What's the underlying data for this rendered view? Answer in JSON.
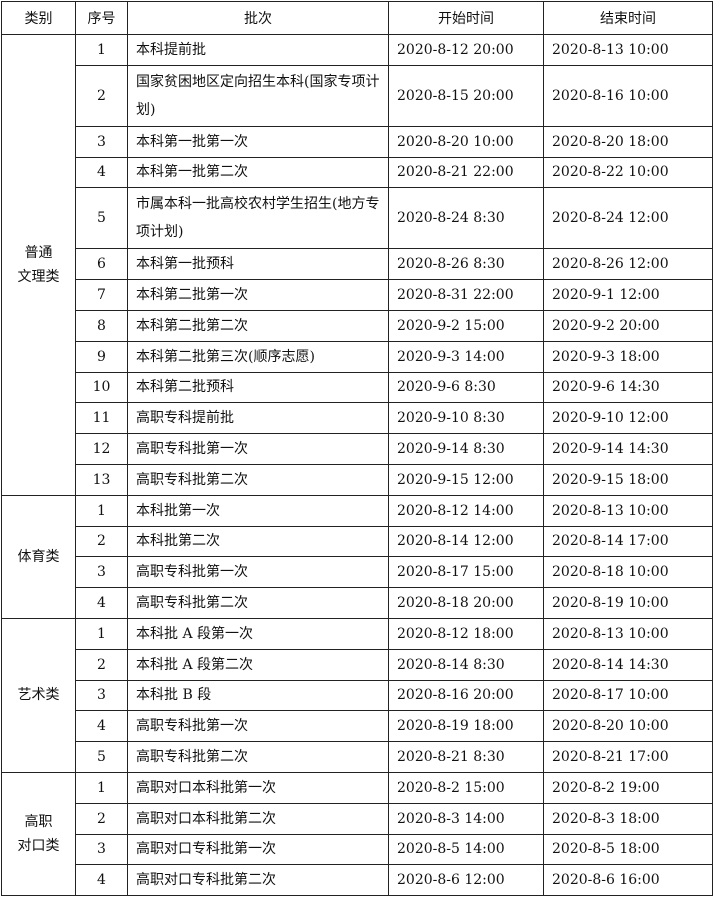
{
  "headers": [
    "类别",
    "序号",
    "批次",
    "开始时间",
    "结束时间"
  ],
  "groups": [
    {
      "category": [
        "普通",
        "文理类"
      ],
      "rows": [
        {
          "no": "1",
          "batch": "本科提前批",
          "start": "2020-8-12 20:00",
          "end": "2020-8-13 10:00"
        },
        {
          "no": "2",
          "batch": "国家贫困地区定向招生本科(国家专项计划)",
          "start": "2020-8-15 20:00",
          "end": "2020-8-16 10:00",
          "tall": true
        },
        {
          "no": "3",
          "batch": "本科第一批第一次",
          "start": "2020-8-20 10:00",
          "end": "2020-8-20 18:00"
        },
        {
          "no": "4",
          "batch": "本科第一批第二次",
          "start": "2020-8-21 22:00",
          "end": "2020-8-22 10:00"
        },
        {
          "no": "5",
          "batch": "市属本科一批高校农村学生招生(地方专项计划)",
          "start": "2020-8-24 8:30",
          "end": "2020-8-24 12:00",
          "tall": true
        },
        {
          "no": "6",
          "batch": "本科第一批预科",
          "start": "2020-8-26 8:30",
          "end": "2020-8-26 12:00"
        },
        {
          "no": "7",
          "batch": "本科第二批第一次",
          "start": "2020-8-31 22:00",
          "end": "2020-9-1 12:00"
        },
        {
          "no": "8",
          "batch": "本科第二批第二次",
          "start": "2020-9-2 15:00",
          "end": "2020-9-2 20:00"
        },
        {
          "no": "9",
          "batch": "本科第二批第三次(顺序志愿)",
          "start": "2020-9-3 14:00",
          "end": "2020-9-3 18:00"
        },
        {
          "no": "10",
          "batch": "本科第二批预科",
          "start": "2020-9-6 8:30",
          "end": "2020-9-6 14:30"
        },
        {
          "no": "11",
          "batch": "高职专科提前批",
          "start": "2020-9-10 8:30",
          "end": "2020-9-10 12:00"
        },
        {
          "no": "12",
          "batch": "高职专科批第一次",
          "start": "2020-9-14 8:30",
          "end": "2020-9-14 14:30"
        },
        {
          "no": "13",
          "batch": "高职专科批第二次",
          "start": "2020-9-15 12:00",
          "end": "2020-9-15 18:00"
        }
      ]
    },
    {
      "category": [
        "体育类"
      ],
      "rows": [
        {
          "no": "1",
          "batch": "本科批第一次",
          "start": "2020-8-12 14:00",
          "end": "2020-8-13 10:00"
        },
        {
          "no": "2",
          "batch": "本科批第二次",
          "start": "2020-8-14 12:00",
          "end": "2020-8-14 17:00"
        },
        {
          "no": "3",
          "batch": "高职专科批第一次",
          "start": "2020-8-17 15:00",
          "end": "2020-8-18 10:00"
        },
        {
          "no": "4",
          "batch": "高职专科批第二次",
          "start": "2020-8-18 20:00",
          "end": "2020-8-19 10:00"
        }
      ]
    },
    {
      "category": [
        "艺术类"
      ],
      "rows": [
        {
          "no": "1",
          "batch": "本科批 A 段第一次",
          "start": "2020-8-12 18:00",
          "end": "2020-8-13 10:00"
        },
        {
          "no": "2",
          "batch": "本科批 A 段第二次",
          "start": "2020-8-14 8:30",
          "end": "2020-8-14 14:30"
        },
        {
          "no": "3",
          "batch": "本科批 B 段",
          "start": "2020-8-16 20:00",
          "end": "2020-8-17 10:00"
        },
        {
          "no": "4",
          "batch": "高职专科批第一次",
          "start": "2020-8-19 18:00",
          "end": "2020-8-20 10:00"
        },
        {
          "no": "5",
          "batch": "高职专科批第二次",
          "start": "2020-8-21 8:30",
          "end": "2020-8-21 17:00"
        }
      ]
    },
    {
      "category": [
        "高职",
        "对口类"
      ],
      "rows": [
        {
          "no": "1",
          "batch": "高职对口本科批第一次",
          "start": "2020-8-2 15:00",
          "end": "2020-8-2 19:00"
        },
        {
          "no": "2",
          "batch": "高职对口本科批第二次",
          "start": "2020-8-3 14:00",
          "end": "2020-8-3 18:00"
        },
        {
          "no": "3",
          "batch": "高职对口专科批第一次",
          "start": "2020-8-5 14:00",
          "end": "2020-8-5 18:00"
        },
        {
          "no": "4",
          "batch": "高职对口专科批第二次",
          "start": "2020-8-6 12:00",
          "end": "2020-8-6 16:00"
        }
      ]
    }
  ]
}
